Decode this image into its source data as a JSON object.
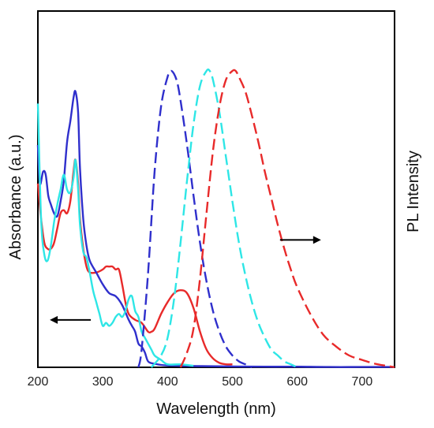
{
  "chart_data": {
    "type": "line",
    "title": "",
    "xlabel": "Wavelength (nm)",
    "ylabel_left": "Absorbance (a.u.)",
    "ylabel_right": "PL Intensity",
    "xlim": [
      200,
      750
    ],
    "ylim": [
      0,
      1
    ],
    "x_ticks": [
      "200",
      "300",
      "400",
      "500",
      "600",
      "700"
    ],
    "x_tick_values": [
      200,
      300,
      400,
      500,
      600,
      700
    ],
    "y_ticks_shown": false,
    "grid": false,
    "legend": "none",
    "annotations": [
      {
        "type": "arrow",
        "direction": "left",
        "axis": "Absorbance (a.u.)",
        "at": [
          250,
          0.16
        ]
      },
      {
        "type": "arrow",
        "direction": "right",
        "axis": "PL Intensity",
        "at": [
          605,
          0.43
        ]
      }
    ],
    "series": [
      {
        "kind": "absorbance",
        "color": "#e82a2a",
        "style": "solid",
        "x": [
          200,
          205,
          210,
          215,
          220,
          225,
          230,
          235,
          240,
          245,
          250,
          255,
          258,
          262,
          265,
          270,
          275,
          280,
          290,
          300,
          305,
          310,
          315,
          320,
          325,
          330,
          335,
          340,
          350,
          360,
          370,
          375,
          380,
          390,
          400,
          410,
          420,
          430,
          440,
          450,
          460,
          470,
          480,
          490,
          500
        ],
        "y": [
          0.62,
          0.5,
          0.42,
          0.4,
          0.4,
          0.42,
          0.47,
          0.52,
          0.53,
          0.52,
          0.56,
          0.66,
          0.7,
          0.62,
          0.5,
          0.4,
          0.34,
          0.32,
          0.32,
          0.33,
          0.34,
          0.34,
          0.34,
          0.33,
          0.33,
          0.28,
          0.22,
          0.18,
          0.16,
          0.15,
          0.12,
          0.12,
          0.13,
          0.18,
          0.22,
          0.25,
          0.26,
          0.25,
          0.2,
          0.12,
          0.06,
          0.03,
          0.015,
          0.01,
          0.01
        ]
      },
      {
        "kind": "absorbance",
        "color": "#2f2fcc",
        "style": "solid",
        "x": [
          200,
          203,
          208,
          212,
          216,
          220,
          225,
          230,
          235,
          240,
          245,
          250,
          255,
          258,
          262,
          265,
          270,
          275,
          280,
          290,
          300,
          310,
          320,
          330,
          340,
          345,
          350,
          355,
          360,
          365,
          370,
          380,
          400,
          450,
          500,
          550,
          600,
          650,
          700,
          750
        ],
        "y": [
          0.75,
          0.62,
          0.66,
          0.65,
          0.58,
          0.55,
          0.52,
          0.51,
          0.56,
          0.63,
          0.76,
          0.83,
          0.91,
          0.93,
          0.86,
          0.67,
          0.5,
          0.41,
          0.36,
          0.32,
          0.28,
          0.25,
          0.24,
          0.21,
          0.16,
          0.14,
          0.12,
          0.08,
          0.07,
          0.05,
          0.02,
          0.012,
          0.006,
          0.004,
          0.003,
          0.002,
          0.002,
          0.001,
          0.001,
          0.001
        ]
      },
      {
        "kind": "absorbance",
        "color": "#2ee6e6",
        "style": "solid",
        "x": [
          200,
          205,
          210,
          215,
          220,
          225,
          230,
          235,
          240,
          245,
          250,
          255,
          258,
          262,
          265,
          270,
          275,
          280,
          285,
          290,
          295,
          300,
          305,
          310,
          315,
          320,
          325,
          330,
          335,
          340,
          345,
          350,
          355,
          360,
          365,
          370,
          375,
          380,
          390,
          400,
          420,
          440
        ],
        "y": [
          0.89,
          0.5,
          0.38,
          0.36,
          0.41,
          0.49,
          0.55,
          0.6,
          0.65,
          0.6,
          0.59,
          0.64,
          0.7,
          0.6,
          0.48,
          0.39,
          0.37,
          0.32,
          0.26,
          0.22,
          0.18,
          0.14,
          0.15,
          0.14,
          0.15,
          0.17,
          0.18,
          0.17,
          0.19,
          0.23,
          0.24,
          0.19,
          0.17,
          0.12,
          0.1,
          0.08,
          0.06,
          0.04,
          0.025,
          0.01,
          0.01,
          0.005
        ]
      },
      {
        "kind": "pl",
        "color": "#2f2fcc",
        "style": "dashed",
        "x": [
          355,
          360,
          370,
          380,
          390,
          400,
          405,
          410,
          415,
          420,
          430,
          440,
          450,
          460,
          470,
          480,
          490,
          500,
          510,
          520,
          530
        ],
        "y": [
          0.0,
          0.06,
          0.32,
          0.66,
          0.88,
          0.98,
          1.0,
          0.99,
          0.96,
          0.9,
          0.75,
          0.58,
          0.42,
          0.29,
          0.19,
          0.12,
          0.07,
          0.04,
          0.02,
          0.01,
          0.0
        ]
      },
      {
        "kind": "pl",
        "color": "#2ee6e6",
        "style": "dashed",
        "x": [
          375,
          390,
          400,
          410,
          420,
          430,
          440,
          450,
          460,
          465,
          470,
          480,
          490,
          500,
          510,
          520,
          530,
          540,
          550,
          560,
          570,
          580,
          590,
          600
        ],
        "y": [
          0.0,
          0.04,
          0.1,
          0.23,
          0.42,
          0.63,
          0.82,
          0.95,
          1.0,
          1.0,
          0.97,
          0.86,
          0.71,
          0.56,
          0.42,
          0.31,
          0.22,
          0.15,
          0.1,
          0.06,
          0.04,
          0.02,
          0.01,
          0.0
        ]
      },
      {
        "kind": "pl",
        "color": "#e82a2a",
        "style": "dashed",
        "x": [
          420,
          430,
          440,
          450,
          460,
          470,
          480,
          490,
          500,
          505,
          510,
          520,
          530,
          540,
          550,
          560,
          570,
          580,
          590,
          600,
          620,
          640,
          660,
          680,
          700,
          720,
          740,
          750
        ],
        "y": [
          0.0,
          0.05,
          0.13,
          0.3,
          0.52,
          0.73,
          0.88,
          0.97,
          1.0,
          1.0,
          0.98,
          0.93,
          0.85,
          0.76,
          0.66,
          0.57,
          0.48,
          0.4,
          0.33,
          0.27,
          0.18,
          0.11,
          0.07,
          0.04,
          0.025,
          0.012,
          0.004,
          0.0
        ]
      }
    ]
  }
}
